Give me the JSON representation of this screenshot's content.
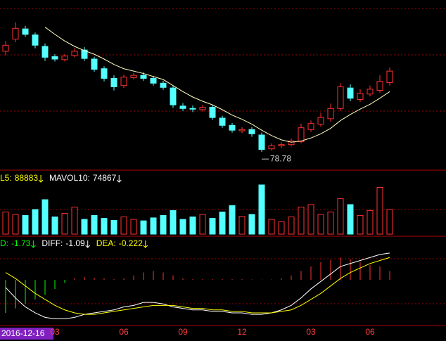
{
  "cursor_date": "2016-12-16",
  "chart_data": [
    {
      "type": "candlestick",
      "ylim": [
        76,
        104
      ],
      "annotation": {
        "label": "78.78",
        "value": 78.78
      },
      "categories": [
        null,
        null,
        null,
        null,
        null,
        "03",
        null,
        null,
        null,
        null,
        null,
        null,
        "06",
        null,
        null,
        null,
        null,
        null,
        "09",
        null,
        null,
        null,
        null,
        null,
        "12",
        null,
        null,
        null,
        null,
        null,
        null,
        "03",
        null,
        null,
        null,
        null,
        null,
        "06",
        null,
        null
      ],
      "open": [
        95.5,
        97.5,
        99.2,
        98.2,
        96.3,
        94.6,
        94.1,
        94.8,
        95.7,
        94.2,
        92.6,
        91.0,
        89.8,
        91.1,
        91.5,
        91.0,
        90.2,
        89.4,
        86.4,
        86.0,
        85.8,
        86.2,
        84.4,
        83.2,
        82.3,
        82.5,
        81.6,
        79.3,
        79.8,
        80.0,
        80.5,
        82.5,
        83.4,
        84.3,
        86.0,
        89.4,
        87.5,
        88.4,
        89.0,
        90.3
      ],
      "high": [
        97.2,
        100.3,
        99.7,
        98.6,
        96.8,
        95.0,
        95.0,
        96.0,
        96.2,
        94.6,
        93.0,
        91.5,
        91.6,
        91.9,
        92.0,
        91.4,
        90.6,
        89.8,
        86.9,
        86.5,
        86.6,
        86.6,
        84.8,
        83.6,
        82.9,
        82.9,
        82.0,
        80.2,
        80.4,
        81.0,
        83.5,
        84.0,
        85.3,
        86.8,
        90.2,
        90.0,
        89.2,
        89.8,
        91.5,
        92.8
      ],
      "low": [
        94.8,
        97.0,
        97.9,
        96.0,
        93.9,
        93.8,
        93.8,
        94.5,
        93.9,
        92.1,
        90.5,
        89.0,
        89.4,
        90.8,
        90.6,
        89.8,
        89.1,
        86.1,
        85.6,
        85.4,
        85.5,
        84.1,
        82.8,
        82.0,
        81.9,
        81.3,
        78.78,
        79.0,
        79.4,
        79.7,
        80.2,
        82.1,
        83.0,
        83.8,
        85.6,
        87.2,
        87.1,
        88.0,
        88.6,
        89.8
      ],
      "close": [
        96.5,
        99.3,
        98.3,
        96.5,
        94.5,
        94.2,
        94.7,
        95.5,
        94.3,
        92.5,
        91.0,
        89.6,
        91.2,
        91.5,
        91.0,
        90.2,
        89.5,
        86.6,
        86.0,
        85.9,
        86.2,
        84.5,
        83.2,
        82.4,
        82.5,
        81.8,
        79.2,
        79.8,
        80.0,
        80.6,
        82.8,
        83.5,
        84.5,
        86.0,
        89.6,
        87.7,
        88.5,
        89.2,
        90.5,
        92.2
      ],
      "ma": [
        null,
        null,
        null,
        null,
        99.5,
        98.3,
        97.2,
        96.3,
        95.6,
        95.0,
        94.2,
        93.3,
        92.6,
        92.2,
        91.8,
        91.3,
        90.8,
        89.8,
        88.8,
        87.9,
        87.2,
        86.6,
        85.8,
        84.9,
        84.2,
        83.4,
        82.4,
        81.5,
        80.8,
        80.4,
        80.6,
        81.1,
        81.8,
        82.7,
        84.0,
        85.0,
        85.9,
        86.7,
        87.7,
        88.8
      ],
      "up_color": "#ff3232",
      "down_color": "#54ffff",
      "ma_color": "#ffffc0"
    },
    {
      "type": "bar",
      "ylim": [
        0,
        110000
      ],
      "headers": [
        {
          "label": "L5:",
          "value": 88883,
          "color": "#ffff00"
        },
        {
          "label": "MAVOL10:",
          "value": 74867,
          "color": "#ffffff"
        }
      ],
      "values": [
        45000,
        40000,
        38000,
        50000,
        70000,
        35000,
        42000,
        55000,
        30000,
        38000,
        32000,
        28000,
        35000,
        30000,
        27000,
        33000,
        38000,
        48000,
        30000,
        35000,
        40000,
        32000,
        45000,
        58000,
        36000,
        40000,
        100000,
        30000,
        25000,
        35000,
        55000,
        60000,
        40000,
        45000,
        72000,
        60000,
        38000,
        48000,
        95000,
        50000
      ]
    },
    {
      "type": "macd",
      "ylim": [
        -3,
        2.5
      ],
      "headers": [
        {
          "label": "D:",
          "value": -1.73,
          "color": "#00ff00"
        },
        {
          "label": "DIFF:",
          "value": -1.09,
          "color": "#ffffff"
        },
        {
          "label": "DEA:",
          "value": -0.222,
          "color": "#ffff00"
        }
      ],
      "values": [
        -2.2,
        -1.9,
        -1.6,
        -1.3,
        -1.0,
        -0.6,
        -0.2,
        0.1,
        0.2,
        0.15,
        0.1,
        0.05,
        0.1,
        0.3,
        0.5,
        0.6,
        0.5,
        0.3,
        0.1,
        0.05,
        0.05,
        0.05,
        0.05,
        0.05,
        0.05,
        0.03,
        0.02,
        0.03,
        0.1,
        0.3,
        0.6,
        0.9,
        1.2,
        1.35,
        1.5,
        1.4,
        1.2,
        1.0,
        0.9,
        0.6
      ],
      "series": [
        {
          "name": "DIFF",
          "color": "#ffffff",
          "values": [
            -0.5,
            -1.2,
            -1.8,
            -2.2,
            -2.5,
            -2.6,
            -2.6,
            -2.5,
            -2.3,
            -2.2,
            -2.1,
            -2.0,
            -1.8,
            -1.7,
            -1.5,
            -1.5,
            -1.6,
            -1.8,
            -1.9,
            -2.0,
            -2.0,
            -2.1,
            -2.1,
            -2.2,
            -2.2,
            -2.3,
            -2.3,
            -2.2,
            -2.0,
            -1.7,
            -1.2,
            -0.6,
            -0.1,
            0.4,
            0.9,
            1.1,
            1.3,
            1.5,
            1.7,
            1.8
          ]
        },
        {
          "name": "DEA",
          "color": "#ffff00",
          "values": [
            0.5,
            0.1,
            -0.4,
            -0.9,
            -1.3,
            -1.7,
            -2.0,
            -2.2,
            -2.3,
            -2.3,
            -2.2,
            -2.1,
            -2.0,
            -1.9,
            -1.8,
            -1.7,
            -1.7,
            -1.7,
            -1.8,
            -1.9,
            -1.9,
            -2.0,
            -2.0,
            -2.1,
            -2.1,
            -2.2,
            -2.2,
            -2.2,
            -2.1,
            -2.0,
            -1.7,
            -1.3,
            -0.9,
            -0.4,
            0.1,
            0.5,
            0.8,
            1.1,
            1.3,
            1.5
          ]
        }
      ]
    }
  ]
}
